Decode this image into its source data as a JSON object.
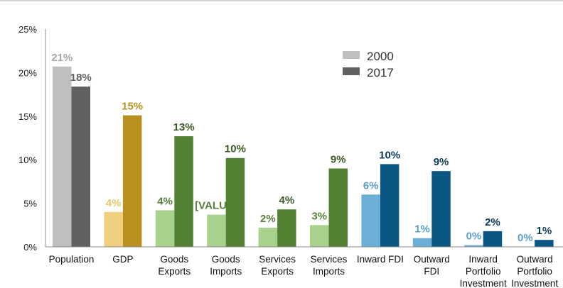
{
  "chart_data": {
    "type": "bar",
    "title": "",
    "xlabel": "",
    "ylabel": "",
    "ylim": [
      0,
      25
    ],
    "yticks": [
      0,
      5,
      10,
      15,
      20,
      25
    ],
    "ytick_labels": [
      "0%",
      "5%",
      "10%",
      "15%",
      "20%",
      "25%"
    ],
    "grid": false,
    "legend_position": "top-right",
    "categories": [
      [
        "Population"
      ],
      [
        "GDP"
      ],
      [
        "Goods",
        "Exports"
      ],
      [
        "Goods",
        "Imports"
      ],
      [
        "Services",
        "Exports"
      ],
      [
        "Services",
        "Imports"
      ],
      [
        "Inward FDI"
      ],
      [
        "Outward",
        "FDI"
      ],
      [
        "Inward",
        "Portfolio",
        "Investment"
      ],
      [
        "Outward",
        "Portfolio",
        "Investment"
      ]
    ],
    "series": [
      {
        "name": "2000",
        "legend_color": "#bfbfbf",
        "values": [
          20.7,
          4.0,
          4.2,
          3.7,
          2.2,
          2.5,
          6.0,
          1.0,
          0.2,
          0.0
        ],
        "labels": [
          "21%",
          "4%",
          "4%",
          "[VALU",
          "2%",
          "3%",
          "6%",
          "1%",
          "0%",
          "0%"
        ],
        "colors": [
          "#bfbfbf",
          "#f0d080",
          "#a9d18e",
          "#a9d18e",
          "#a9d18e",
          "#a9d18e",
          "#6baed6",
          "#6baed6",
          "#6baed6",
          "#6baed6"
        ],
        "label_colors": [
          "#a6a6a6",
          "#e8c86a",
          "#5a7f3a",
          "#5a7f3a",
          "#5a7f3a",
          "#5a7f3a",
          "#5b9ec9",
          "#5b9ec9",
          "#5b9ec9",
          "#5b9ec9"
        ]
      },
      {
        "name": "2017",
        "legend_color": "#606060",
        "values": [
          18.4,
          15.1,
          12.7,
          10.2,
          4.3,
          9.0,
          9.5,
          8.7,
          1.8,
          0.8
        ],
        "labels": [
          "18%",
          "15%",
          "13%",
          "10%",
          "4%",
          "9%",
          "10%",
          "9%",
          "2%",
          "1%"
        ],
        "colors": [
          "#606060",
          "#b8901e",
          "#548235",
          "#548235",
          "#548235",
          "#548235",
          "#0b5783",
          "#0b5783",
          "#0b5783",
          "#0b5783"
        ],
        "label_colors": [
          "#606060",
          "#b8901e",
          "#3b5a25",
          "#3b5a25",
          "#3b5a25",
          "#3b5a25",
          "#0d3a55",
          "#0d3a55",
          "#0d3a55",
          "#0d3a55"
        ]
      }
    ]
  }
}
